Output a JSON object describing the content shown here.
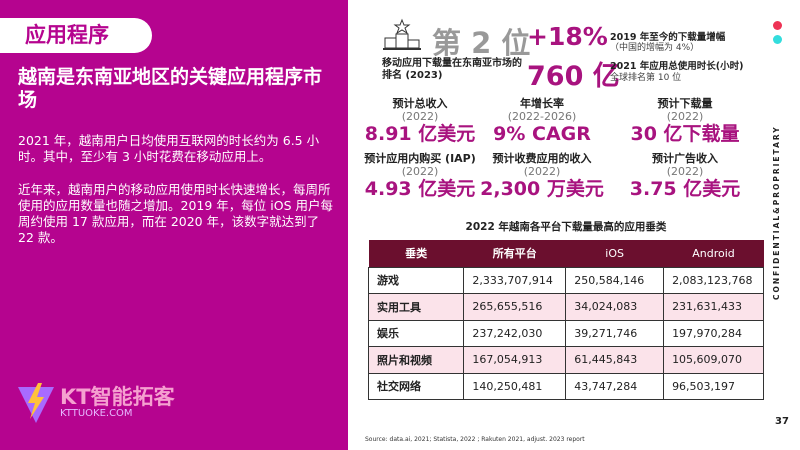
{
  "left": {
    "pill": "应用程序",
    "heading": "越南是东南亚地区的关键应用程序市场",
    "para1": "2021 年，越南用户日均使用互联网的时长约为 6.5 小时。其中，至少有 3 小时花费在移动应用上。",
    "para2": "近年来，越南用户的移动应用使用时长快速增长，每周所使用的应用数量也随之增加。2019 年，每位 iOS 用户每周约使用 17 款应用，而在 2020 年，该数字就达到了 22 款。",
    "logo_text": "KT智能拓客",
    "logo_url": "KTTUOKE.COM"
  },
  "top": {
    "rank": "第 2 位",
    "rank_desc": "移动应用下载量在东南亚市场的排名 (2023)",
    "growth": "+18%",
    "growth_title": "2019 年至今的下载量增幅",
    "growth_sub": "（中国的增幅为 4%）",
    "hours": "760 亿",
    "hours_title": "2021 年应用总使用时长(小时)",
    "hours_sub": "全球排名第 10 位"
  },
  "stats": [
    {
      "label": "预计总收入",
      "year": "(2022)",
      "value": "8.91 亿美元"
    },
    {
      "label": "年增长率",
      "year": "(2022-2026)",
      "value": "9% CAGR"
    },
    {
      "label": "预计下载量",
      "year": "(2022)",
      "value": "30 亿下载量"
    },
    {
      "label": "预计应用内购买 (IAP)",
      "year": "(2022)",
      "value": "4.93 亿美元"
    },
    {
      "label": "预计收费应用的收入",
      "year": "(2022)",
      "value": "2,300 万美元"
    },
    {
      "label": "预计广告收入",
      "year": "(2022)",
      "value": "3.75 亿美元"
    }
  ],
  "table": {
    "title": "2022 年越南各平台下载量最高的应用垂类",
    "headers": [
      "垂类",
      "所有平台",
      "iOS",
      "Android"
    ],
    "rows": [
      [
        "游戏",
        "2,333,707,914",
        "250,584,146",
        "2,083,123,768"
      ],
      [
        "实用工具",
        "265,655,516",
        "34,024,083",
        "231,631,433"
      ],
      [
        "娱乐",
        "237,242,030",
        "39,271,746",
        "197,970,284"
      ],
      [
        "照片和视频",
        "167,054,913",
        "61,445,843",
        "105,609,070"
      ],
      [
        "社交网络",
        "140,250,481",
        "43,747,284",
        "96,503,197"
      ]
    ]
  },
  "source": "Source: data.ai, 2021; Statista, 2022 ; Rakuten 2021, adjust. 2023 report",
  "confidential": "CONFIDENTIAL&PROPRIETARY",
  "page_number": "37",
  "colors": {
    "brand": "#b5048f",
    "header": "#6b0f2e",
    "dot1": "#ee3355",
    "dot2": "#33dddd"
  }
}
